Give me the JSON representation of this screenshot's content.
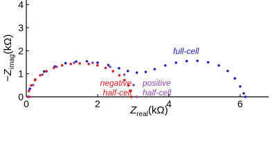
{
  "chart_data": {
    "type": "scatter",
    "xlabel": {
      "main": "Z",
      "sub": "real",
      "unit": "(kΩ)"
    },
    "ylabel": {
      "main": "−Z",
      "sub": "imag",
      "unit": "(kΩ)"
    },
    "xlim": [
      0,
      6.8
    ],
    "ylim": [
      0,
      4.2
    ],
    "xticks": [
      0,
      2,
      4,
      6
    ],
    "yticks": [
      0,
      1,
      2,
      3,
      4
    ],
    "series": [
      {
        "color": "#1f1fb0",
        "x": [
          0.05,
          0.1,
          0.25,
          0.5,
          0.8,
          1.1,
          1.4,
          1.7,
          2.0,
          2.3,
          2.6,
          2.85,
          3.1,
          3.35,
          3.6,
          3.9,
          4.2,
          4.5,
          4.8,
          5.1,
          5.4,
          5.65,
          5.85,
          6.0,
          6.1,
          6.15
        ],
        "values": [
          0,
          0.35,
          0.75,
          1.1,
          1.32,
          1.46,
          1.53,
          1.54,
          1.48,
          1.38,
          1.24,
          1.12,
          1.05,
          1.08,
          1.2,
          1.36,
          1.48,
          1.55,
          1.56,
          1.5,
          1.36,
          1.12,
          0.8,
          0.45,
          0.15,
          0
        ]
      },
      {
        "color": "#8e44ad",
        "x": [
          0.1,
          0.19,
          0.451,
          0.85,
          1.34,
          1.86,
          2.35,
          2.749,
          3.01,
          3.1
        ],
        "values": [
          0,
          0.513,
          0.964,
          1.299,
          1.477,
          1.477,
          1.299,
          0.964,
          0.513,
          0
        ]
      },
      {
        "color": "#d42020",
        "x": [
          0.05,
          0.072,
          0.137,
          0.244,
          0.389,
          0.568,
          0.775,
          1.004,
          1.248,
          1.5,
          1.752,
          1.996,
          2.225,
          2.432,
          2.611,
          2.756,
          2.863,
          2.928,
          2.95
        ],
        "values": [
          0,
          0.252,
          0.496,
          0.725,
          0.932,
          1.111,
          1.256,
          1.363,
          1.428,
          1.45,
          1.428,
          1.363,
          1.256,
          1.111,
          0.932,
          0.725,
          0.496,
          0.252,
          0
        ]
      }
    ],
    "annotations": [
      {
        "lines": [
          "full-cell"
        ],
        "color": "#1f1fb0"
      },
      {
        "lines": [
          "positive",
          "half-cell"
        ],
        "color": "#8e44ad"
      },
      {
        "lines": [
          "negative",
          "half-cell"
        ],
        "color": "#d42020"
      }
    ]
  }
}
